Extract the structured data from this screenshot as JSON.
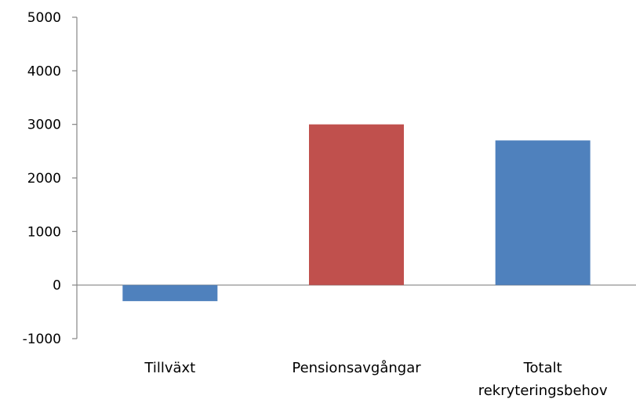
{
  "chart_data": {
    "type": "bar",
    "categories": [
      [
        "Tillväxt"
      ],
      [
        "Pensionsavgångar"
      ],
      [
        "Totalt",
        "rekryteringsbehov"
      ]
    ],
    "values": [
      -300,
      3000,
      2700
    ],
    "bar_colors": [
      "#4F81BD",
      "#C0504D",
      "#4F81BD"
    ],
    "ylim": [
      -1000,
      5000
    ],
    "yticks": [
      5000,
      4000,
      3000,
      2000,
      1000,
      0,
      -1000
    ],
    "ytick_labels": [
      "5000",
      "4000",
      "3000",
      "2000",
      "1000",
      "0",
      "-1000"
    ],
    "grid": false,
    "legend": "none",
    "axis_color": "#868686"
  }
}
